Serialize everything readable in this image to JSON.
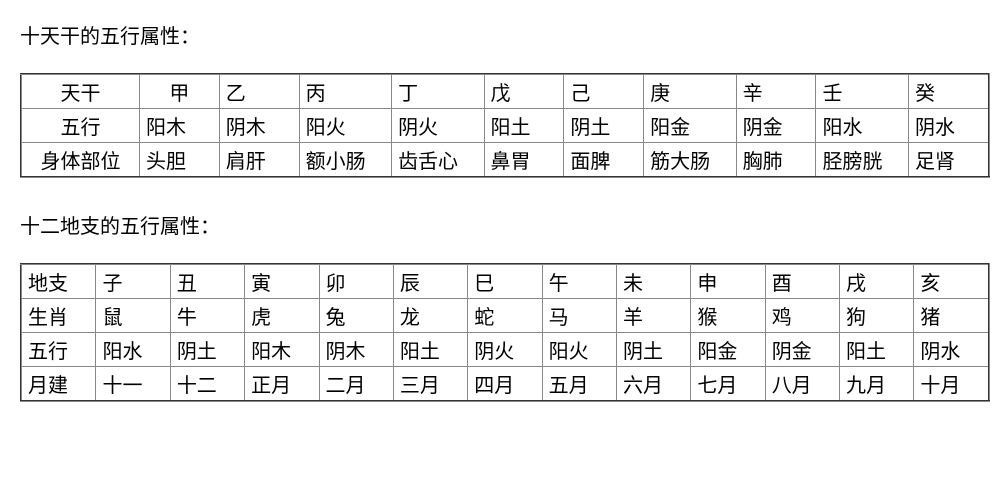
{
  "title1": "十天干的五行属性：",
  "table1": {
    "r0": [
      "天干",
      "甲",
      "乙",
      "丙",
      "丁",
      "戊",
      "己",
      "庚",
      "辛",
      "壬",
      "癸"
    ],
    "r1": [
      "五行",
      "阳木",
      "阴木",
      "阳火",
      "阴火",
      "阳土",
      "阴土",
      "阳金",
      "阴金",
      "阳水",
      "阴水"
    ],
    "r2": [
      "身体部位",
      "头胆",
      "肩肝",
      "额小肠",
      "齿舌心",
      "鼻胃",
      "面脾",
      "筋大肠",
      "胸肺",
      "胫膀胱",
      "足肾"
    ]
  },
  "title2": "十二地支的五行属性：",
  "table2": {
    "r0": [
      "地支",
      "子",
      "丑",
      "寅",
      "卯",
      "辰",
      "巳",
      "午",
      "未",
      "申",
      "酉",
      "戌",
      "亥"
    ],
    "r1": [
      "生肖",
      "鼠",
      "牛",
      "虎",
      "兔",
      "龙",
      "蛇",
      "马",
      "羊",
      "猴",
      "鸡",
      "狗",
      "猪"
    ],
    "r2": [
      "五行",
      "阳水",
      "阴土",
      "阳木",
      "阴木",
      "阳土",
      "阴火",
      "阳火",
      "阴土",
      "阳金",
      "阴金",
      "阳土",
      "阴水"
    ],
    "r3": [
      "月建",
      "十一",
      "十二",
      "正月",
      "二月",
      "三月",
      "四月",
      "五月",
      "六月",
      "七月",
      "八月",
      "九月",
      "十月"
    ]
  }
}
